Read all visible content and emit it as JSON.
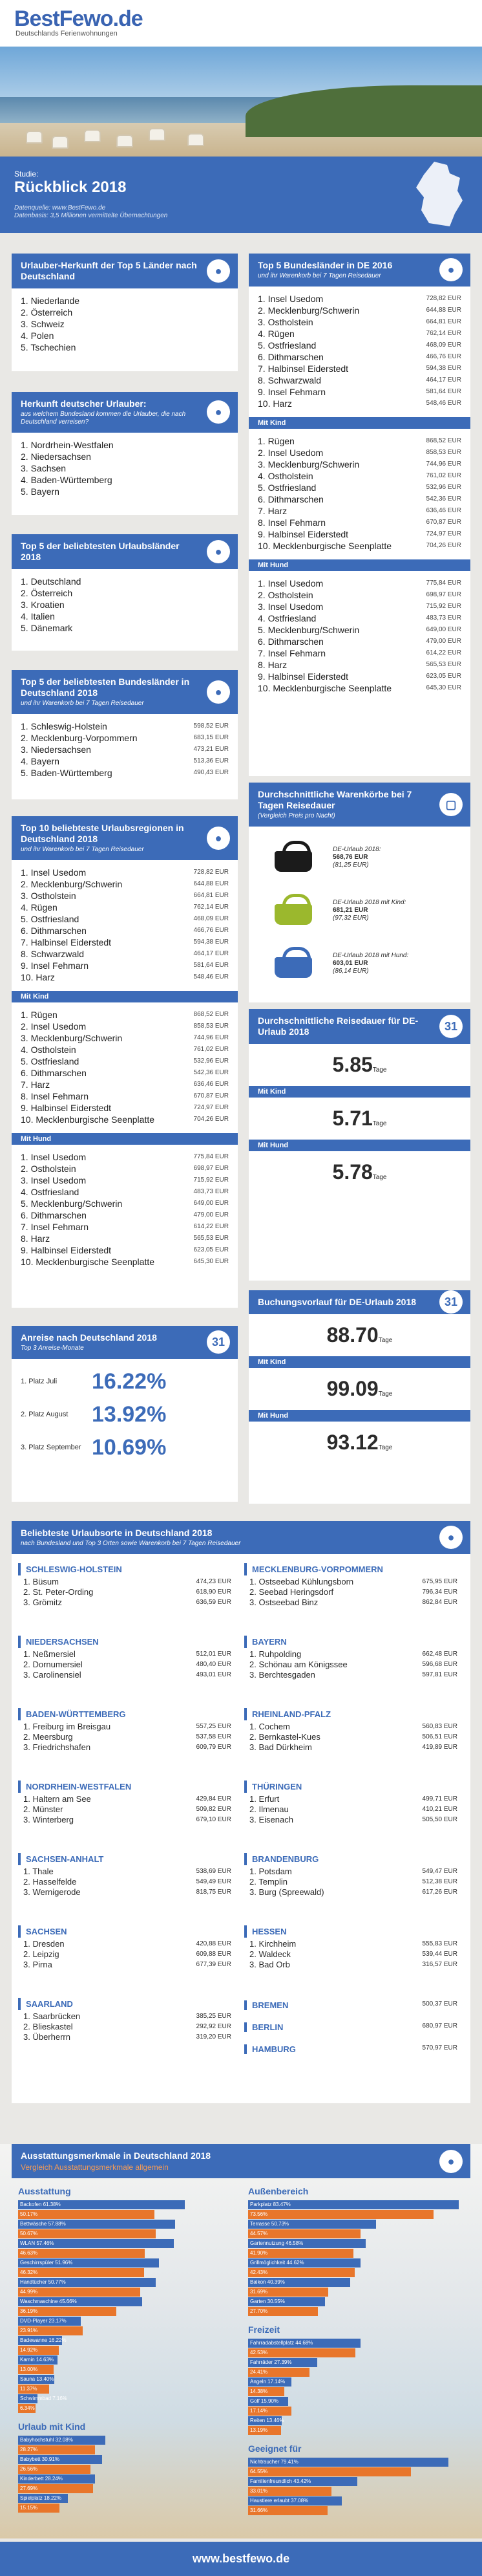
{
  "header": {
    "logo": "BestFewo",
    "logo_tld": ".de",
    "tagline": "Deutschlands Ferienwohnungen"
  },
  "study": {
    "label": "Studie:",
    "title": "Rückblick 2018",
    "note1": "Datenquelle: www.BestFewo.de",
    "note2": "Datenbasis: 3,5 Millionen vermittelte Übernachtungen"
  },
  "herkunft": {
    "title": "Urlauber-Herkunft der Top 5 Länder nach Deutschland",
    "items": [
      "1. Niederlande",
      "2. Österreich",
      "3. Schweiz",
      "4. Polen",
      "5. Tschechien"
    ]
  },
  "herkunft_de": {
    "title": "Herkunft deutscher Urlauber:",
    "sub": "aus welchem Bundesland kommen die Urlauber, die nach Deutschland verreisen?",
    "items": [
      "1. Nordrhein-Westfalen",
      "2. Niedersachsen",
      "3. Sachsen",
      "4. Baden-Württemberg",
      "5. Bayern"
    ]
  },
  "laender": {
    "title": "Top 5 der beliebtesten Urlaubsländer 2018",
    "items": [
      "1. Deutschland",
      "2. Österreich",
      "3. Kroatien",
      "4. Italien",
      "5. Dänemark"
    ]
  },
  "bundeslaender": {
    "title": "Top 5 der beliebtesten Bundesländer in Deutschland 2018",
    "sub": "und ihr Warenkorb bei 7 Tagen Reisedauer",
    "items": [
      [
        "1. Schleswig-Holstein",
        "598,52 EUR"
      ],
      [
        "2. Mecklenburg-Vorpommern",
        "683,15 EUR"
      ],
      [
        "3. Niedersachsen",
        "473,21 EUR"
      ],
      [
        "4. Bayern",
        "513,36 EUR"
      ],
      [
        "5. Baden-Württemberg",
        "490,43 EUR"
      ]
    ]
  },
  "regionen": {
    "title": "Top 10 beliebteste Urlaubsregionen in Deutschland 2018",
    "sub": "und ihr Warenkorb bei 7 Tagen Reisedauer",
    "all": [
      [
        "1. Insel Usedom",
        "728,82 EUR"
      ],
      [
        "2. Mecklenburg/Schwerin",
        "644,88 EUR"
      ],
      [
        "3. Ostholstein",
        "664,81 EUR"
      ],
      [
        "4. Rügen",
        "762,14 EUR"
      ],
      [
        "5. Ostfriesland",
        "468,09 EUR"
      ],
      [
        "6. Dithmarschen",
        "466,76 EUR"
      ],
      [
        "7. Halbinsel Eiderstedt",
        "594,38 EUR"
      ],
      [
        "8. Schwarzwald",
        "464,17 EUR"
      ],
      [
        "9. Insel Fehmarn",
        "581,64 EUR"
      ],
      [
        "10. Harz",
        "548,46 EUR"
      ]
    ],
    "kind_label": "Mit Kind",
    "kind": [
      [
        "1. Rügen",
        "868,52 EUR"
      ],
      [
        "2. Insel Usedom",
        "858,53 EUR"
      ],
      [
        "3. Mecklenburg/Schwerin",
        "744,96 EUR"
      ],
      [
        "4. Ostholstein",
        "761,02 EUR"
      ],
      [
        "5. Ostfriesland",
        "532,96 EUR"
      ],
      [
        "6. Dithmarschen",
        "542,36 EUR"
      ],
      [
        "7. Harz",
        "636,46 EUR"
      ],
      [
        "8. Insel Fehmarn",
        "670,87 EUR"
      ],
      [
        "9. Halbinsel Eiderstedt",
        "724,97 EUR"
      ],
      [
        "10. Mecklenburgische Seenplatte",
        "704,26 EUR"
      ]
    ],
    "hund_label": "Mit Hund",
    "hund": [
      [
        "1. Insel Usedom",
        "775,84 EUR"
      ],
      [
        "2. Ostholstein",
        "698,97 EUR"
      ],
      [
        "3. Insel Usedom",
        "715,92 EUR"
      ],
      [
        "4. Ostfriesland",
        "483,73 EUR"
      ],
      [
        "5. Mecklenburg/Schwerin",
        "649,00 EUR"
      ],
      [
        "6. Dithmarschen",
        "479,00 EUR"
      ],
      [
        "7. Insel Fehmarn",
        "614,22 EUR"
      ],
      [
        "8. Harz",
        "565,53 EUR"
      ],
      [
        "9. Halbinsel Eiderstedt",
        "623,05 EUR"
      ],
      [
        "10. Mecklenburgische Seenplatte",
        "645,30 EUR"
      ]
    ]
  },
  "bl2016": {
    "title": "Top 5 Bundesländer in DE 2016",
    "sub": "und ihr Warenkorb bei 7 Tagen Reisedauer",
    "all": [
      [
        "1. Insel Usedom",
        "728,82 EUR"
      ],
      [
        "2. Mecklenburg/Schwerin",
        "644,88 EUR"
      ],
      [
        "3. Ostholstein",
        "664,81 EUR"
      ],
      [
        "4. Rügen",
        "762,14 EUR"
      ],
      [
        "5. Ostfriesland",
        "468,09 EUR"
      ],
      [
        "6. Dithmarschen",
        "466,76 EUR"
      ],
      [
        "7. Halbinsel Eiderstedt",
        "594,38 EUR"
      ],
      [
        "8. Schwarzwald",
        "464,17 EUR"
      ],
      [
        "9. Insel Fehmarn",
        "581,64 EUR"
      ],
      [
        "10. Harz",
        "548,46 EUR"
      ]
    ],
    "kind_label": "Mit Kind",
    "kind": [
      [
        "1. Rügen",
        "868,52 EUR"
      ],
      [
        "2. Insel Usedom",
        "858,53 EUR"
      ],
      [
        "3. Mecklenburg/Schwerin",
        "744,96 EUR"
      ],
      [
        "4. Ostholstein",
        "761,02 EUR"
      ],
      [
        "5. Ostfriesland",
        "532,96 EUR"
      ],
      [
        "6. Dithmarschen",
        "542,36 EUR"
      ],
      [
        "7. Harz",
        "636,46 EUR"
      ],
      [
        "8. Insel Fehmarn",
        "670,87 EUR"
      ],
      [
        "9. Halbinsel Eiderstedt",
        "724,97 EUR"
      ],
      [
        "10. Mecklenburgische Seenplatte",
        "704,26 EUR"
      ]
    ],
    "hund_label": "Mit Hund",
    "hund": [
      [
        "1. Insel Usedom",
        "775,84 EUR"
      ],
      [
        "2. Ostholstein",
        "698,97 EUR"
      ],
      [
        "3. Insel Usedom",
        "715,92 EUR"
      ],
      [
        "4. Ostfriesland",
        "483,73 EUR"
      ],
      [
        "5. Mecklenburg/Schwerin",
        "649,00 EUR"
      ],
      [
        "6. Dithmarschen",
        "479,00 EUR"
      ],
      [
        "7. Insel Fehmarn",
        "614,22 EUR"
      ],
      [
        "8. Harz",
        "565,53 EUR"
      ],
      [
        "9. Halbinsel Eiderstedt",
        "623,05 EUR"
      ],
      [
        "10. Mecklenburgische Seenplatte",
        "645,30 EUR"
      ]
    ]
  },
  "anreise": {
    "title": "Anreise nach Deutschland 2018",
    "sub": "Top 3 Anreise-Monate",
    "rows": [
      [
        "1. Platz Juli",
        "16.22%"
      ],
      [
        "2. Platz August",
        "13.92%"
      ],
      [
        "3. Platz September",
        "10.69%"
      ]
    ]
  },
  "warenkorb": {
    "title": "Durchschnittliche Warenkörbe bei 7 Tagen Reisedauer",
    "sub": "(Vergleich Preis pro Nacht)",
    "items": [
      {
        "label": "DE-Urlaub 2018:",
        "value": "568,76 EUR",
        "night": "(81,25 EUR)",
        "color": "#1b1b1b"
      },
      {
        "label": "DE-Urlaub 2018 mit Kind:",
        "value": "681,21 EUR",
        "night": "(97,32 EUR)",
        "color": "#9bb82d"
      },
      {
        "label": "DE-Urlaub 2018 mit Hund:",
        "value": "603,01 EUR",
        "night": "(86,14 EUR)",
        "color": "#3c6bb8"
      }
    ]
  },
  "reisedauer": {
    "title": "Durchschnittliche Reisedauer für DE-Urlaub 2018",
    "v1": "5.85",
    "u": "Tage",
    "kind_label": "Mit Kind",
    "v2": "5.71",
    "hund_label": "Mit Hund",
    "v3": "5.78"
  },
  "buchung": {
    "title": "Buchungsvorlauf für DE-Urlaub 2018",
    "v1": "88.70",
    "u": "Tage",
    "kind_label": "Mit Kind",
    "v2": "99.09",
    "hund_label": "Mit Hund",
    "v3": "93.12"
  },
  "orte": {
    "title": "Beliebteste Urlaubsorte in Deutschland 2018",
    "sub": "nach Bundesland und Top 3 Orten sowie Warenkorb bei 7 Tagen Reisedauer",
    "left": [
      {
        "name": "SCHLESWIG-HOLSTEIN",
        "rows": [
          [
            "1. Büsum",
            "474,23 EUR"
          ],
          [
            "2. St. Peter-Ording",
            "618,90 EUR"
          ],
          [
            "3. Grömitz",
            "636,59 EUR"
          ]
        ]
      },
      {
        "name": "NIEDERSACHSEN",
        "rows": [
          [
            "1. Neßmersiel",
            "512,01 EUR"
          ],
          [
            "2. Dornumersiel",
            "480,40 EUR"
          ],
          [
            "3. Carolinensiel",
            "493,01 EUR"
          ]
        ]
      },
      {
        "name": "BADEN-WÜRTTEMBERG",
        "rows": [
          [
            "1. Freiburg im Breisgau",
            "557,25 EUR"
          ],
          [
            "2. Meersburg",
            "537,58 EUR"
          ],
          [
            "3. Friedrichshafen",
            "609,79 EUR"
          ]
        ]
      },
      {
        "name": "NORDRHEIN-WESTFALEN",
        "rows": [
          [
            "1. Haltern am See",
            "429,84 EUR"
          ],
          [
            "2. Münster",
            "509,82 EUR"
          ],
          [
            "3. Winterberg",
            "679,10 EUR"
          ]
        ]
      },
      {
        "name": "SACHSEN-ANHALT",
        "rows": [
          [
            "1. Thale",
            "538,69 EUR"
          ],
          [
            "2. Hasselfelde",
            "549,49 EUR"
          ],
          [
            "3. Wernigerode",
            "818,75 EUR"
          ]
        ]
      },
      {
        "name": "SACHSEN",
        "rows": [
          [
            "1. Dresden",
            "420,88 EUR"
          ],
          [
            "2. Leipzig",
            "609,88 EUR"
          ],
          [
            "3. Pirna",
            "677,39 EUR"
          ]
        ]
      },
      {
        "name": "SAARLAND",
        "rows": [
          [
            "1. Saarbrücken",
            "385,25 EUR"
          ],
          [
            "2. Blieskastel",
            "292,92 EUR"
          ],
          [
            "3. Überherrn",
            "319,20 EUR"
          ]
        ]
      }
    ],
    "right": [
      {
        "name": "MECKLENBURG-VORPOMMERN",
        "rows": [
          [
            "1. Ostseebad Kühlungsborn",
            "675,95 EUR"
          ],
          [
            "2. Seebad Heringsdorf",
            "796,34 EUR"
          ],
          [
            "3. Ostseebad Binz",
            "862,84 EUR"
          ]
        ]
      },
      {
        "name": "BAYERN",
        "rows": [
          [
            "1. Ruhpolding",
            "662,48 EUR"
          ],
          [
            "2. Schönau am Königssee",
            "596,68 EUR"
          ],
          [
            "3. Berchtesgaden",
            "597,81 EUR"
          ]
        ]
      },
      {
        "name": "RHEINLAND-PFALZ",
        "rows": [
          [
            "1. Cochem",
            "560,83 EUR"
          ],
          [
            "2. Bernkastel-Kues",
            "506,51 EUR"
          ],
          [
            "3. Bad Dürkheim",
            "419,89 EUR"
          ]
        ]
      },
      {
        "name": "THÜRINGEN",
        "rows": [
          [
            "1. Erfurt",
            "499,71 EUR"
          ],
          [
            "2. Ilmenau",
            "410,21 EUR"
          ],
          [
            "3. Eisenach",
            "505,50 EUR"
          ]
        ]
      },
      {
        "name": "BRANDENBURG",
        "rows": [
          [
            "1. Potsdam",
            "549,47 EUR"
          ],
          [
            "2. Templin",
            "512,38 EUR"
          ],
          [
            "3. Burg (Spreewald)",
            "617,26 EUR"
          ]
        ]
      },
      {
        "name": "HESSEN",
        "rows": [
          [
            "1. Kirchheim",
            "555,83 EUR"
          ],
          [
            "2. Waldeck",
            "539,44 EUR"
          ],
          [
            "3. Bad Orb",
            "316,57 EUR"
          ]
        ]
      }
    ],
    "singles": [
      [
        "BREMEN",
        "500,37 EUR"
      ],
      [
        "BERLIN",
        "680,97 EUR"
      ],
      [
        "HAMBURG",
        "570,97 EUR"
      ]
    ]
  },
  "amen": {
    "title": "Ausstattungsmerkmale in Deutschland 2018",
    "sub": "Vergleich Ausstattungsmerkmale allgemein",
    "g1": {
      "title": "Ausstattung",
      "rows": [
        [
          "Backofen 61.38%",
          61.38,
          "#3c6bb8"
        ],
        [
          "50.17%",
          50.17,
          "#e8762b"
        ],
        [
          "Bettwäsche 57.88%",
          57.88,
          "#3c6bb8"
        ],
        [
          "50.67%",
          50.67,
          "#e8762b"
        ],
        [
          "WLAN 57.46%",
          57.46,
          "#3c6bb8"
        ],
        [
          "46.63%",
          46.63,
          "#e8762b"
        ],
        [
          "Geschirrspüler 51.96%",
          51.96,
          "#3c6bb8"
        ],
        [
          "46.32%",
          46.32,
          "#e8762b"
        ],
        [
          "Handtücher 50.77%",
          50.77,
          "#3c6bb8"
        ],
        [
          "44.99%",
          44.99,
          "#e8762b"
        ],
        [
          "Waschmaschine 45.66%",
          45.66,
          "#3c6bb8"
        ],
        [
          "36.19%",
          36.19,
          "#e8762b"
        ],
        [
          "DVD-Player 23.17%",
          23.17,
          "#3c6bb8"
        ],
        [
          "23.91%",
          23.91,
          "#e8762b"
        ],
        [
          "Badewanne 16.22%",
          16.22,
          "#3c6bb8"
        ],
        [
          "14.92%",
          14.92,
          "#e8762b"
        ],
        [
          "Kamin 14.63%",
          14.63,
          "#3c6bb8"
        ],
        [
          "13.00%",
          13.0,
          "#e8762b"
        ],
        [
          "Sauna 13.40%",
          13.4,
          "#3c6bb8"
        ],
        [
          "11.37%",
          11.37,
          "#e8762b"
        ],
        [
          "Schwimmbad 7.16%",
          7.16,
          "#3c6bb8"
        ],
        [
          "6.34%",
          6.34,
          "#e8762b"
        ]
      ]
    },
    "g2": {
      "title": "Urlaub mit Kind",
      "rows": [
        [
          "Babyhochstuhl 32.08%",
          32.08,
          "#3c6bb8"
        ],
        [
          "28.27%",
          28.27,
          "#e8762b"
        ],
        [
          "Babybett 30.91%",
          30.91,
          "#3c6bb8"
        ],
        [
          "26.56%",
          26.56,
          "#e8762b"
        ],
        [
          "Kinderbett 28.24%",
          28.24,
          "#3c6bb8"
        ],
        [
          "27.69%",
          27.69,
          "#e8762b"
        ],
        [
          "Spielplatz 18.22%",
          18.22,
          "#3c6bb8"
        ],
        [
          "15.15%",
          15.15,
          "#e8762b"
        ]
      ]
    },
    "g3": {
      "title": "Außenbereich",
      "rows": [
        [
          "Parkplatz 83.47%",
          83.47,
          "#3c6bb8"
        ],
        [
          "73.56%",
          73.56,
          "#e8762b"
        ],
        [
          "Terrasse 50.73%",
          50.73,
          "#3c6bb8"
        ],
        [
          "44.57%",
          44.57,
          "#e8762b"
        ],
        [
          "Gartennutzung 46.58%",
          46.58,
          "#3c6bb8"
        ],
        [
          "41.90%",
          41.9,
          "#e8762b"
        ],
        [
          "Grillmöglichkeit 44.62%",
          44.62,
          "#3c6bb8"
        ],
        [
          "42.43%",
          42.43,
          "#e8762b"
        ],
        [
          "Balkon 40.39%",
          40.39,
          "#3c6bb8"
        ],
        [
          "31.69%",
          31.69,
          "#e8762b"
        ],
        [
          "Garten 30.55%",
          30.55,
          "#3c6bb8"
        ],
        [
          "27.70%",
          27.7,
          "#e8762b"
        ]
      ]
    },
    "g4": {
      "title": "Freizeit",
      "rows": [
        [
          "Fahrradabstellplatz 44.68%",
          44.68,
          "#3c6bb8"
        ],
        [
          "42.53%",
          42.53,
          "#e8762b"
        ],
        [
          "Fahrräder 27.39%",
          27.39,
          "#3c6bb8"
        ],
        [
          "24.41%",
          24.41,
          "#e8762b"
        ],
        [
          "Angeln 17.14%",
          17.14,
          "#3c6bb8"
        ],
        [
          "14.38%",
          14.38,
          "#e8762b"
        ],
        [
          "Golf 15.90%",
          15.9,
          "#3c6bb8"
        ],
        [
          "17.14%",
          17.14,
          "#e8762b"
        ],
        [
          "Reiten 13.46%",
          13.46,
          "#3c6bb8"
        ],
        [
          "13.19%",
          13.19,
          "#e8762b"
        ]
      ]
    },
    "g5": {
      "title": "Geeignet für",
      "rows": [
        [
          "Nichtraucher 79.41%",
          79.41,
          "#3c6bb8"
        ],
        [
          "64.55%",
          64.55,
          "#e8762b"
        ],
        [
          "Familienfreundlich 43.42%",
          43.42,
          "#3c6bb8"
        ],
        [
          "33.01%",
          33.01,
          "#e8762b"
        ],
        [
          "Haustiere erlaubt 37.08%",
          37.08,
          "#3c6bb8"
        ],
        [
          "31.66%",
          31.66,
          "#e8762b"
        ]
      ]
    }
  },
  "footer": {
    "url": "www.bestfewo.de"
  }
}
